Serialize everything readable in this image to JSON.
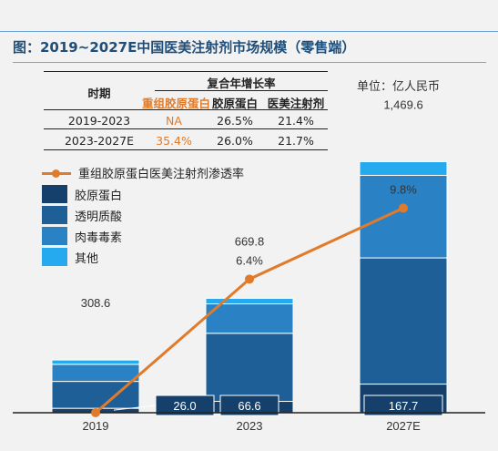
{
  "header": {
    "title": "图：2019~2027E中国医美注射剂市场规模（零售端）",
    "unit": "单位：亿人民币"
  },
  "cagr_table": {
    "header_period": "时期",
    "header_group": "复合年增长率",
    "columns": [
      "重组胶原蛋白",
      "胶原蛋白",
      "医美注射剂"
    ],
    "rows": [
      {
        "period": "2019-2023",
        "values": [
          "NA",
          "26.5%",
          "21.4%"
        ]
      },
      {
        "period": "2023-2027E",
        "values": [
          "35.4%",
          "26.0%",
          "21.7%"
        ]
      }
    ]
  },
  "colors": {
    "collagen": "#14406b",
    "hyaluronic": "#1d5f96",
    "botulinum": "#2a82c5",
    "other": "#25a9ef",
    "line": "#e07b2c",
    "highlight": "#e07b2c"
  },
  "chart_data": {
    "type": "bar",
    "categories": [
      "2019",
      "2023",
      "2027E"
    ],
    "series": [
      {
        "name": "胶原蛋白",
        "values": [
          26.0,
          66.6,
          167.7
        ]
      },
      {
        "name": "透明质酸",
        "values": [
          157.5,
          398.5,
          738.7
        ]
      },
      {
        "name": "肉毒毒素",
        "values": [
          100.1,
          172.1,
          483.2
        ]
      },
      {
        "name": "其他",
        "values": [
          25.0,
          32.6,
          80.0
        ]
      }
    ],
    "totals": [
      308.6,
      669.8,
      1469.6
    ],
    "total_labels": [
      "308.6",
      "669.8",
      "1,469.6"
    ],
    "collagen_labels": [
      "26.0",
      "66.6",
      "167.7"
    ],
    "stack_order": [
      "胶原蛋白",
      "透明质酸",
      "肉毒毒素",
      "其他"
    ],
    "ylim": [
      0,
      1600
    ],
    "line": {
      "name": "重组胶原蛋白医美注射剂渗透率",
      "values": [
        0.0,
        6.4,
        9.8
      ],
      "labels": [
        "",
        "6.4%",
        "9.8%"
      ],
      "ylim": [
        0,
        12
      ]
    },
    "legend": [
      "重组胶原蛋白医美注射剂渗透率",
      "胶原蛋白",
      "透明质酸",
      "肉毒毒素",
      "其他"
    ],
    "legend_position": "upper-left",
    "grid": false
  }
}
